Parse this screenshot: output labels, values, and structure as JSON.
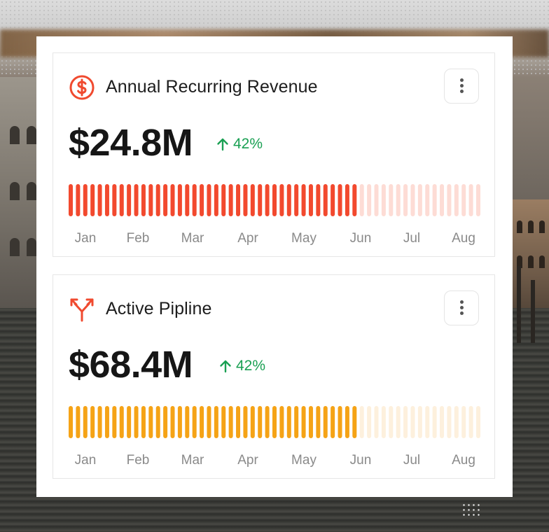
{
  "cards": [
    {
      "title": "Annual Recurring Revenue",
      "icon": "dollar-circle-icon",
      "value": "$24.8M",
      "delta": "42%",
      "delta_direction": "up",
      "months": [
        "Jan",
        "Feb",
        "Mar",
        "Apr",
        "May",
        "Jun",
        "Jul",
        "Aug"
      ],
      "progress": {
        "total_bars": 57,
        "filled_bars": 40
      },
      "colors": {
        "accent": "#f04a2f",
        "filled": "#f2492e",
        "empty": "#fddcd5",
        "delta": "#1aa053"
      }
    },
    {
      "title": "Active Pipline",
      "icon": "split-arrows-icon",
      "value": "$68.4M",
      "delta": "42%",
      "delta_direction": "up",
      "months": [
        "Jan",
        "Feb",
        "Mar",
        "Apr",
        "May",
        "Jun",
        "Jul",
        "Aug"
      ],
      "progress": {
        "total_bars": 57,
        "filled_bars": 40
      },
      "colors": {
        "accent": "#f04a2f",
        "filled": "#f5a316",
        "empty": "#fdf0dd",
        "delta": "#1aa053"
      }
    }
  ]
}
